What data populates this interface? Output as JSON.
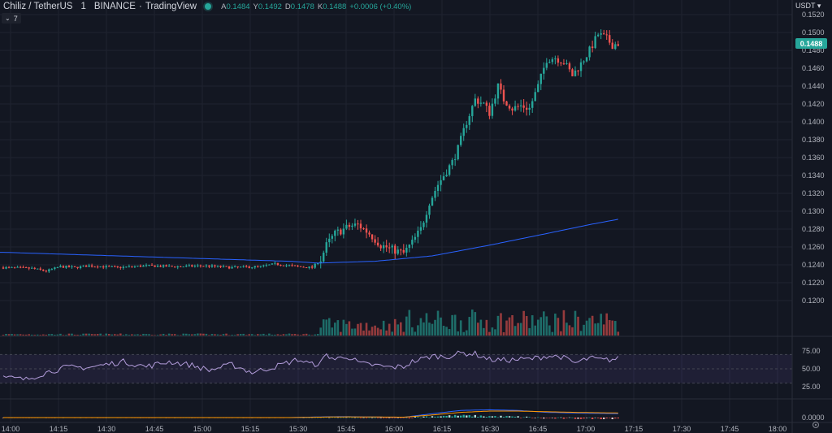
{
  "header": {
    "symbol": "Chiliz / TetherUS",
    "interval": "1",
    "exchange": "BINANCE",
    "source": "TradingView",
    "open_label": "A",
    "open_value": "0.1484",
    "high_label": "Y",
    "high_value": "0.1492",
    "low_label": "D",
    "low_value": "0.1478",
    "close_label": "K",
    "close_value": "0.1488",
    "change": "+0.0006 (+0.40%)"
  },
  "indicators_toggle": {
    "chevron": "chevron-down-icon",
    "count": "7"
  },
  "currency": "USDT",
  "last_price": "0.1488",
  "colors": {
    "bg": "#131722",
    "up": "#26a69a",
    "down": "#ef5350",
    "ma": "#2962ff",
    "rsi": "#b39ddb",
    "macd": "#2962ff",
    "signal": "#ff9800"
  },
  "chart_data": {
    "type": "candlestick",
    "price_axis": {
      "ticks": [
        "0.1520",
        "0.1500",
        "0.1480",
        "0.1460",
        "0.1440",
        "0.1420",
        "0.1400",
        "0.1380",
        "0.1360",
        "0.1340",
        "0.1320",
        "0.1300",
        "0.1280",
        "0.1260",
        "0.1240",
        "0.1220",
        "0.1200"
      ],
      "range": [
        0.119,
        0.1525
      ]
    },
    "time_axis": {
      "ticks": [
        "14:00",
        "14:15",
        "14:30",
        "14:45",
        "15:00",
        "15:15",
        "15:30",
        "15:45",
        "16:00",
        "16:15",
        "16:30",
        "16:45",
        "17:00",
        "17:15",
        "17:30",
        "17:45",
        "18:00"
      ]
    },
    "price_anchors": [
      [
        0,
        0.1237
      ],
      [
        10,
        0.1236
      ],
      [
        15,
        0.1233
      ],
      [
        20,
        0.1238
      ],
      [
        25,
        0.1237
      ],
      [
        30,
        0.1239
      ],
      [
        40,
        0.1237
      ],
      [
        50,
        0.1239
      ],
      [
        60,
        0.1238
      ],
      [
        70,
        0.1239
      ],
      [
        80,
        0.1237
      ],
      [
        90,
        0.1238
      ],
      [
        95,
        0.1241
      ],
      [
        103,
        0.1238
      ],
      [
        108,
        0.1237
      ],
      [
        111,
        0.1246
      ],
      [
        113,
        0.1262
      ],
      [
        116,
        0.1275
      ],
      [
        121,
        0.1283
      ],
      [
        124,
        0.1285
      ],
      [
        128,
        0.1275
      ],
      [
        132,
        0.1262
      ],
      [
        137,
        0.1256
      ],
      [
        140,
        0.1253
      ],
      [
        143,
        0.1265
      ],
      [
        146,
        0.128
      ],
      [
        149,
        0.131
      ],
      [
        152,
        0.133
      ],
      [
        155,
        0.1345
      ],
      [
        157,
        0.1355
      ],
      [
        159,
        0.137
      ],
      [
        162,
        0.14
      ],
      [
        165,
        0.1425
      ],
      [
        168,
        0.142
      ],
      [
        170,
        0.141
      ],
      [
        173,
        0.144
      ],
      [
        175,
        0.1425
      ],
      [
        178,
        0.1415
      ],
      [
        181,
        0.1418
      ],
      [
        184,
        0.1415
      ],
      [
        187,
        0.144
      ],
      [
        190,
        0.147
      ],
      [
        193,
        0.1472
      ],
      [
        196,
        0.1467
      ],
      [
        199,
        0.1452
      ],
      [
        202,
        0.1465
      ],
      [
        205,
        0.148
      ],
      [
        208,
        0.1498
      ],
      [
        211,
        0.1493
      ],
      [
        213,
        0.1486
      ],
      [
        215,
        0.1488
      ]
    ],
    "ma_anchors": [
      [
        0,
        0.1254
      ],
      [
        50,
        0.1249
      ],
      [
        100,
        0.1244
      ],
      [
        110,
        0.1242
      ],
      [
        130,
        0.1244
      ],
      [
        150,
        0.125
      ],
      [
        170,
        0.1262
      ],
      [
        190,
        0.1275
      ],
      [
        205,
        0.1285
      ],
      [
        215,
        0.1291
      ]
    ],
    "rsi": {
      "ticks": [
        "75.00",
        "50.00",
        "25.00"
      ],
      "upper": 70,
      "lower": 30,
      "anchors": [
        [
          0,
          38
        ],
        [
          8,
          35
        ],
        [
          15,
          45
        ],
        [
          22,
          52
        ],
        [
          30,
          52
        ],
        [
          42,
          60
        ],
        [
          50,
          53
        ],
        [
          58,
          60
        ],
        [
          66,
          55
        ],
        [
          72,
          48
        ],
        [
          80,
          56
        ],
        [
          87,
          45
        ],
        [
          95,
          53
        ],
        [
          103,
          63
        ],
        [
          108,
          56
        ],
        [
          111,
          58
        ],
        [
          113,
          70
        ],
        [
          116,
          63
        ],
        [
          120,
          68
        ],
        [
          125,
          57
        ],
        [
          130,
          55
        ],
        [
          135,
          52
        ],
        [
          140,
          53
        ],
        [
          143,
          60
        ],
        [
          146,
          63
        ],
        [
          150,
          68
        ],
        [
          155,
          67
        ],
        [
          160,
          72
        ],
        [
          165,
          71
        ],
        [
          170,
          63
        ],
        [
          175,
          62
        ],
        [
          180,
          63
        ],
        [
          185,
          64
        ],
        [
          190,
          68
        ],
        [
          195,
          67
        ],
        [
          200,
          58
        ],
        [
          205,
          65
        ],
        [
          210,
          62
        ],
        [
          215,
          64
        ]
      ]
    },
    "macd": {
      "ticks": [
        "0.0000"
      ],
      "macd_anchors": [
        [
          0,
          0
        ],
        [
          100,
          0
        ],
        [
          113,
          0.00012
        ],
        [
          120,
          0.00014
        ],
        [
          130,
          8e-05
        ],
        [
          140,
          4e-05
        ],
        [
          150,
          0.0006
        ],
        [
          160,
          0.0011
        ],
        [
          170,
          0.0012
        ],
        [
          180,
          0.0011
        ],
        [
          190,
          0.0008
        ],
        [
          200,
          0.0007
        ],
        [
          215,
          0.0006
        ]
      ],
      "signal_anchors": [
        [
          0,
          0
        ],
        [
          100,
          0
        ],
        [
          113,
          8e-05
        ],
        [
          120,
          0.00011
        ],
        [
          130,
          9e-05
        ],
        [
          140,
          6e-05
        ],
        [
          150,
          0.0004
        ],
        [
          160,
          0.0008
        ],
        [
          170,
          0.001
        ],
        [
          180,
          0.001
        ],
        [
          190,
          0.0009
        ],
        [
          200,
          0.0008
        ],
        [
          215,
          0.0007
        ]
      ]
    }
  }
}
